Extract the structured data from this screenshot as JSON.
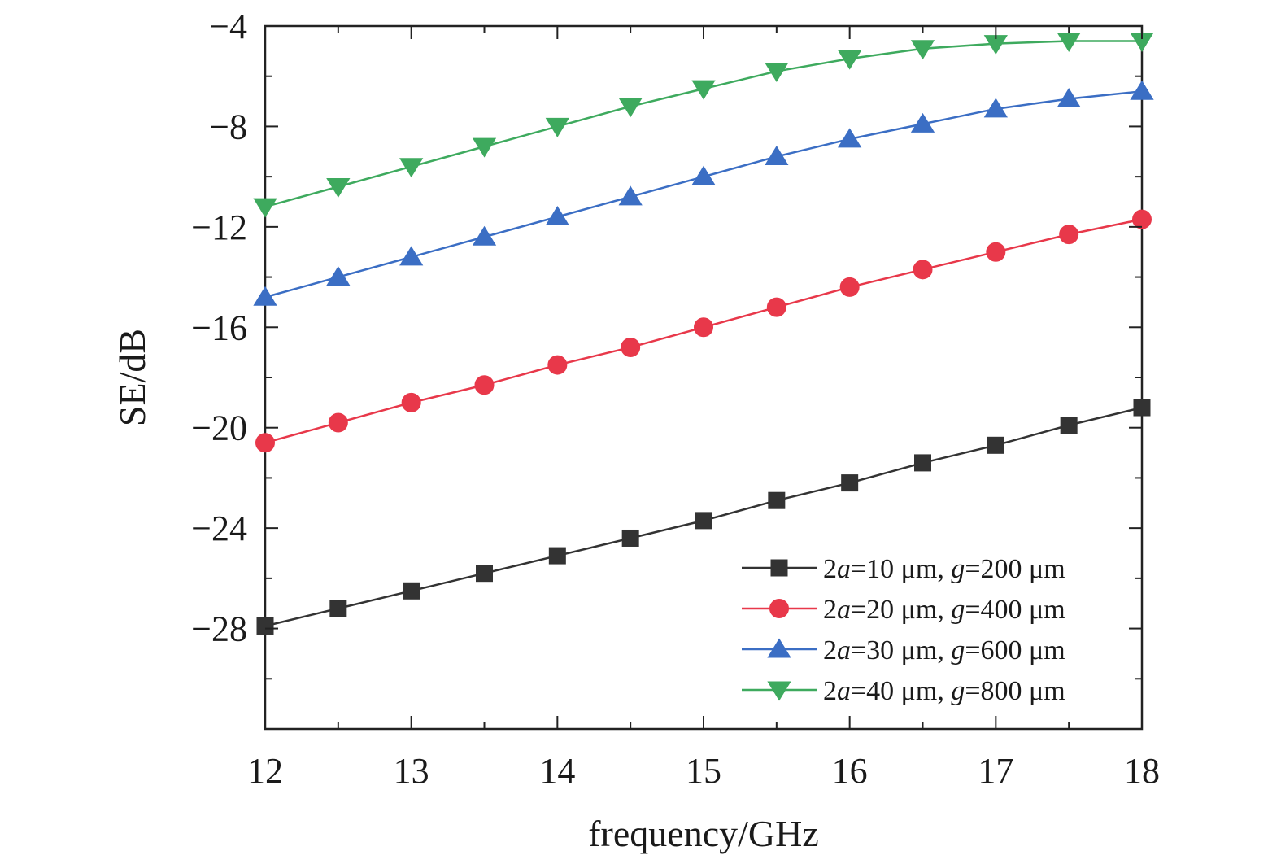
{
  "chart_data": {
    "type": "line",
    "title": "",
    "xlabel": "frequency/GHz",
    "ylabel": "SE/dB",
    "xlim": [
      12,
      18
    ],
    "ylim": [
      -32,
      -4
    ],
    "xticks": [
      12,
      13,
      14,
      15,
      16,
      17,
      18
    ],
    "yticks": [
      -28,
      -24,
      -20,
      -16,
      -12,
      -8,
      -4
    ],
    "ytick_labels": [
      "−28",
      "−24",
      "−20",
      "−16",
      "−12",
      "−8",
      "−4"
    ],
    "grid": false,
    "legend_position": "bottom-right",
    "x": [
      12,
      12.5,
      13,
      13.5,
      14,
      14.5,
      15,
      15.5,
      16,
      16.5,
      17,
      17.5,
      18
    ],
    "series": [
      {
        "name_parts": [
          "2",
          "a",
          "=10 μm, ",
          "g",
          "=200 μm"
        ],
        "color": "#333333",
        "marker": "square",
        "values": [
          -27.9,
          -27.2,
          -26.5,
          -25.8,
          -25.1,
          -24.4,
          -23.7,
          -22.9,
          -22.2,
          -21.4,
          -20.7,
          -19.9,
          -19.2
        ]
      },
      {
        "name_parts": [
          "2",
          "a",
          "=20 μm, ",
          "g",
          "=400 μm"
        ],
        "color": "#e8384a",
        "marker": "circle",
        "values": [
          -20.6,
          -19.8,
          -19.0,
          -18.3,
          -17.5,
          -16.8,
          -16.0,
          -15.2,
          -14.4,
          -13.7,
          -13.0,
          -12.3,
          -11.7
        ]
      },
      {
        "name_parts": [
          "2",
          "a",
          "=30 μm, ",
          "g",
          "=600 μm"
        ],
        "color": "#3b6ec4",
        "marker": "triangle-up",
        "values": [
          -14.8,
          -14.0,
          -13.2,
          -12.4,
          -11.6,
          -10.8,
          -10.0,
          -9.2,
          -8.5,
          -7.9,
          -7.3,
          -6.9,
          -6.6
        ]
      },
      {
        "name_parts": [
          "2",
          "a",
          "=40 μm, ",
          "g",
          "=800 μm"
        ],
        "color": "#3eaa5e",
        "marker": "triangle-down",
        "values": [
          -11.2,
          -10.4,
          -9.6,
          -8.8,
          -8.0,
          -7.2,
          -6.5,
          -5.8,
          -5.3,
          -4.9,
          -4.7,
          -4.6,
          -4.6
        ]
      }
    ]
  }
}
